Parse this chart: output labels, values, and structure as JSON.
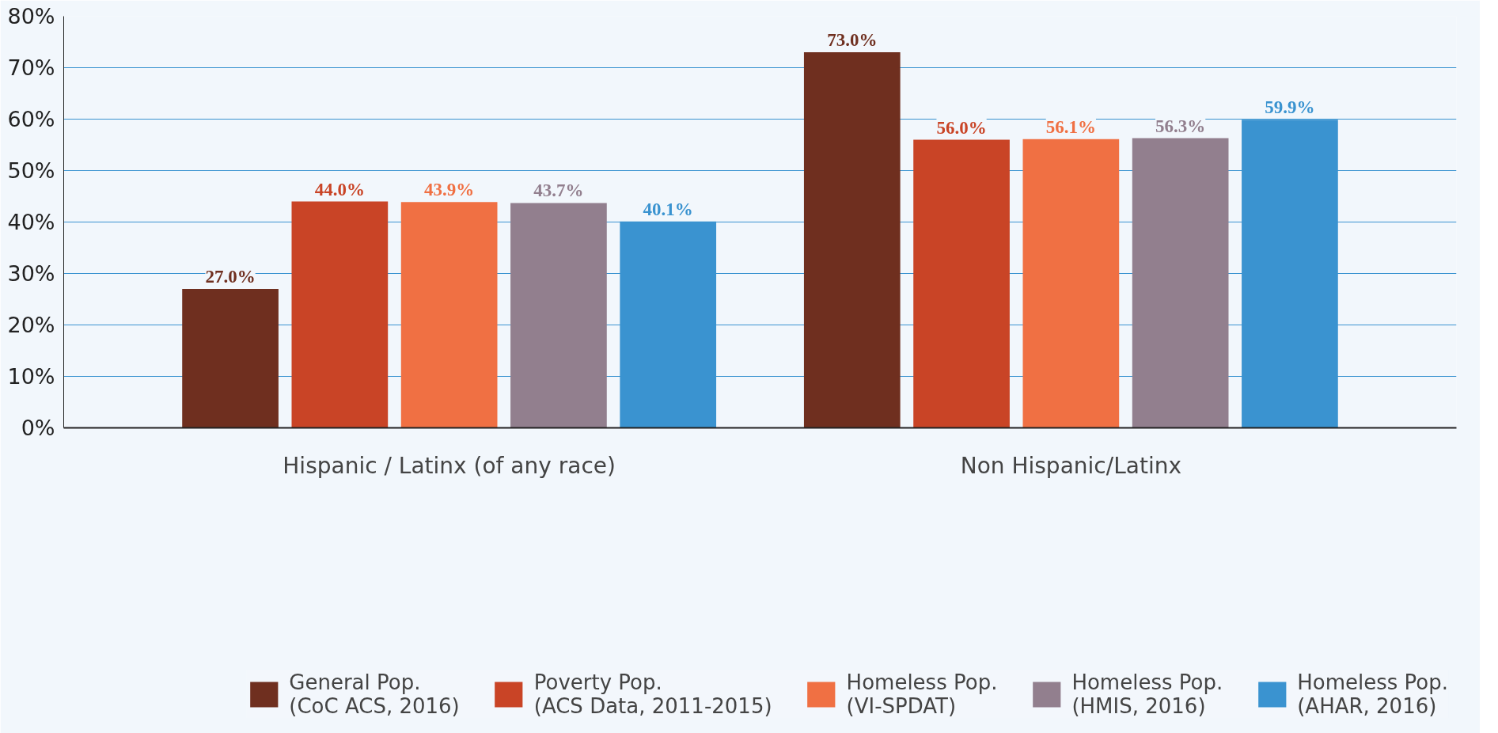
{
  "chart_data": {
    "type": "bar",
    "categories": [
      "Hispanic / Latinx (of any race)",
      "Non Hispanic/Latinx"
    ],
    "series": [
      {
        "name": "General Pop.\n(CoC ACS, 2016)",
        "color": "#6f2f1f",
        "values": [
          27.0,
          73.0
        ],
        "value_labels": [
          "27.0%",
          "73.0%"
        ]
      },
      {
        "name": "Poverty Pop.\n(ACS Data, 2011-2015)",
        "color": "#c94426",
        "values": [
          44.0,
          56.0
        ],
        "value_labels": [
          "44.0%",
          "56.0%"
        ]
      },
      {
        "name": "Homeless Pop.\n(VI-SPDAT)",
        "color": "#f07043",
        "values": [
          43.9,
          56.1
        ],
        "value_labels": [
          "43.9%",
          "56.1%"
        ]
      },
      {
        "name": "Homeless Pop.\n(HMIS, 2016)",
        "color": "#927f8e",
        "values": [
          43.7,
          56.3
        ],
        "value_labels": [
          "43.7%",
          "56.3%"
        ]
      },
      {
        "name": "Homeless Pop.\n(AHAR, 2016)",
        "color": "#3a93d0",
        "values": [
          40.1,
          59.9
        ],
        "value_labels": [
          "40.1%",
          "59.9%"
        ]
      }
    ],
    "ylim": [
      0,
      80
    ],
    "yticks": [
      {
        "value": 0,
        "label": "0%"
      },
      {
        "value": 10,
        "label": "10%"
      },
      {
        "value": 20,
        "label": "20%"
      },
      {
        "value": 30,
        "label": "30%"
      },
      {
        "value": 40,
        "label": "40%"
      },
      {
        "value": 50,
        "label": "50%"
      },
      {
        "value": 60,
        "label": "60%"
      },
      {
        "value": 70,
        "label": "70%"
      },
      {
        "value": 80,
        "label": "80%"
      }
    ],
    "grid": "y",
    "legend": "bottom"
  }
}
